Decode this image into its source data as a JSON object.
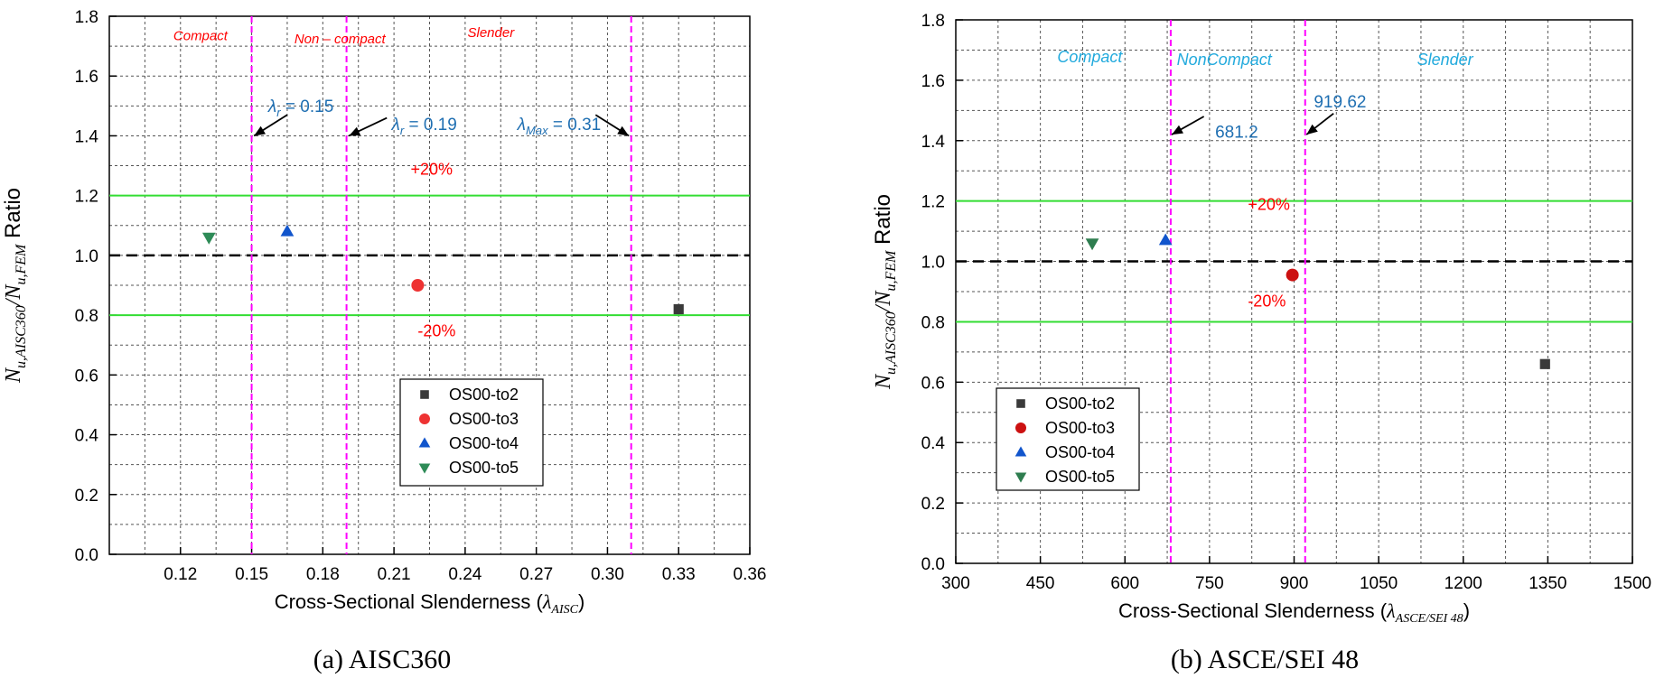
{
  "colors": {
    "limit_line": "#ff00ff",
    "band_line": "#33dd33",
    "unity_line": "#000000",
    "region_label_a": "#ff0000",
    "region_label_b": "#22aadd",
    "annotation": "#1f6fb2",
    "band_label": "#ff0000",
    "grid": "#555555"
  },
  "chart_data": [
    {
      "type": "scatter",
      "caption": "(a) AISC360",
      "xlabel": "Cross-Sectional Slenderness (",
      "xlabel_symbol": "λ",
      "xlabel_sub": "AISC",
      "xlabel_tail": ")",
      "ylabel": "N",
      "ylabel_sub1": "u,AISC360",
      "ylabel_mid": "/N",
      "ylabel_sub2": "u,FEM",
      "ylabel_tail": " Ratio",
      "xlim": [
        0.09,
        0.36
      ],
      "ylim": [
        0.0,
        1.8
      ],
      "x_ticks": [
        "0.12",
        "0.15",
        "0.18",
        "0.21",
        "0.24",
        "0.27",
        "0.30",
        "0.33",
        "0.36"
      ],
      "x_tick_values": [
        0.12,
        0.15,
        0.18,
        0.21,
        0.24,
        0.27,
        0.3,
        0.33,
        0.36
      ],
      "y_ticks": [
        "0.0",
        "0.2",
        "0.4",
        "0.6",
        "0.8",
        "1.0",
        "1.2",
        "1.4",
        "1.6",
        "1.8"
      ],
      "y_tick_values": [
        0.0,
        0.2,
        0.4,
        0.6,
        0.8,
        1.0,
        1.2,
        1.4,
        1.6,
        1.8
      ],
      "grid": true,
      "legend_position": "lower-center",
      "series": [
        {
          "name": "OS00-to2",
          "marker": "square",
          "color": "#3a3a3a",
          "x": [
            0.33
          ],
          "y": [
            0.82
          ]
        },
        {
          "name": "OS00-to3",
          "marker": "circle",
          "color": "#ee3333",
          "x": [
            0.22
          ],
          "y": [
            0.9
          ]
        },
        {
          "name": "OS00-to4",
          "marker": "triangle-up",
          "color": "#1155cc",
          "x": [
            0.165
          ],
          "y": [
            1.08
          ]
        },
        {
          "name": "OS00-to5",
          "marker": "triangle-down",
          "color": "#2e8b57",
          "x": [
            0.132
          ],
          "y": [
            1.06
          ]
        }
      ],
      "vertical_lines": [
        {
          "x": 0.15,
          "label_symbol": "λ",
          "label_sub": "r",
          "label_value": " = 0.15",
          "arrow_from": [
            0.165,
            1.47
          ],
          "arrow_to": [
            0.151,
            1.4
          ],
          "label_at": [
            0.157,
            1.48
          ]
        },
        {
          "x": 0.19,
          "label_symbol": "λ",
          "label_sub": "r",
          "label_value": " = 0.19",
          "arrow_from": [
            0.207,
            1.46
          ],
          "arrow_to": [
            0.191,
            1.4
          ],
          "label_at": [
            0.209,
            1.42
          ]
        },
        {
          "x": 0.31,
          "label_symbol": "λ",
          "label_sub": "Max",
          "label_value": " = 0.31",
          "arrow_from": [
            0.295,
            1.47
          ],
          "arrow_to": [
            0.309,
            1.4
          ],
          "label_at": [
            0.262,
            1.42
          ]
        }
      ],
      "region_labels": [
        {
          "text": "Compact",
          "x": 0.117,
          "y": 1.72
        },
        {
          "text": "Non – compact",
          "x": 0.168,
          "y": 1.71
        },
        {
          "text": "Slender",
          "x": 0.241,
          "y": 1.73
        }
      ],
      "unity_line": 1.0,
      "band_lines": [
        1.2,
        0.8
      ],
      "band_labels": [
        {
          "text": "+20%",
          "x": 0.217,
          "y": 1.27
        },
        {
          "text": "-20%",
          "x": 0.22,
          "y": 0.73
        }
      ]
    },
    {
      "type": "scatter",
      "caption": "(b) ASCE/SEI 48",
      "xlabel": "Cross-Sectional Slenderness (",
      "xlabel_symbol": "λ",
      "xlabel_sub": "ASCE/SEI 48",
      "xlabel_tail": ")",
      "ylabel": "N",
      "ylabel_sub1": "u,AISC360",
      "ylabel_mid": "/N",
      "ylabel_sub2": "u,FEM",
      "ylabel_tail": " Ratio",
      "xlim": [
        300,
        1500
      ],
      "ylim": [
        0.0,
        1.8
      ],
      "x_ticks": [
        "300",
        "450",
        "600",
        "750",
        "900",
        "1050",
        "1200",
        "1350",
        "1500"
      ],
      "x_tick_values": [
        300,
        450,
        600,
        750,
        900,
        1050,
        1200,
        1350,
        1500
      ],
      "y_ticks": [
        "0.0",
        "0.2",
        "0.4",
        "0.6",
        "0.8",
        "1.0",
        "1.2",
        "1.4",
        "1.6",
        "1.8"
      ],
      "y_tick_values": [
        0.0,
        0.2,
        0.4,
        0.6,
        0.8,
        1.0,
        1.2,
        1.4,
        1.6,
        1.8
      ],
      "grid": true,
      "legend_position": "lower-left",
      "series": [
        {
          "name": "OS00-to2",
          "marker": "square",
          "color": "#3a3a3a",
          "x": [
            1345
          ],
          "y": [
            0.66
          ]
        },
        {
          "name": "OS00-to3",
          "marker": "circle",
          "color": "#cc1111",
          "x": [
            897
          ],
          "y": [
            0.955
          ]
        },
        {
          "name": "OS00-to4",
          "marker": "triangle-up",
          "color": "#1155cc",
          "x": [
            672
          ],
          "y": [
            1.07
          ]
        },
        {
          "name": "OS00-to5",
          "marker": "triangle-down",
          "color": "#2e7d4f",
          "x": [
            542
          ],
          "y": [
            1.06
          ]
        }
      ],
      "vertical_lines": [
        {
          "x": 681.2,
          "label_symbol": "",
          "label_sub": "",
          "label_value": "681.2",
          "arrow_from": [
            740,
            1.48
          ],
          "arrow_to": [
            683,
            1.42
          ],
          "label_at": [
            760,
            1.41
          ]
        },
        {
          "x": 919.62,
          "label_symbol": "",
          "label_sub": "",
          "label_value": "919.62",
          "arrow_from": [
            970,
            1.49
          ],
          "arrow_to": [
            922,
            1.42
          ],
          "label_at": [
            935,
            1.51
          ]
        }
      ],
      "region_labels": [
        {
          "text": "Compact",
          "x": 480,
          "y": 1.66
        },
        {
          "text": "NonCompact",
          "x": 692,
          "y": 1.65
        },
        {
          "text": "Slender",
          "x": 1118,
          "y": 1.65
        }
      ],
      "unity_line": 1.0,
      "band_lines": [
        1.2,
        0.8
      ],
      "band_labels": [
        {
          "text": "+20%",
          "x": 818,
          "y": 1.17
        },
        {
          "text": "-20%",
          "x": 818,
          "y": 0.85
        }
      ]
    }
  ]
}
